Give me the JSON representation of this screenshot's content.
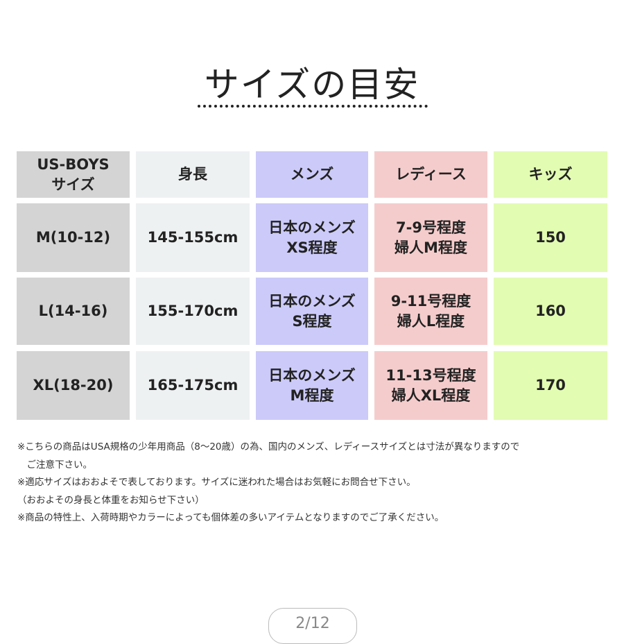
{
  "title": "サイズの目安",
  "table": {
    "headers": [
      "US-BOYS\nサイズ",
      "身長",
      "メンズ",
      "レディース",
      "キッズ"
    ],
    "rows": [
      [
        "M(10-12)",
        "145-155cm",
        "日本のメンズ\nXS程度",
        "7-9号程度\n婦人M程度",
        "150"
      ],
      [
        "L(14-16)",
        "155-170cm",
        "日本のメンズ\nS程度",
        "9-11号程度\n婦人L程度",
        "160"
      ],
      [
        "XL(18-20)",
        "165-175cm",
        "日本のメンズ\nM程度",
        "11-13号程度\n婦人XL程度",
        "170"
      ]
    ],
    "column_colors": [
      "#d4d4d4",
      "#eef1f2",
      "#cbcaf9",
      "#f5cccc",
      "#e2fcb2"
    ]
  },
  "notes": [
    "※こちらの商品はUSA規格の少年用商品（8〜20歳）の為、国内のメンズ、レディースサイズとは寸法が異なりますので",
    "　ご注意下さい。",
    "※適応サイズはおおよそで表しております。サイズに迷われた場合はお気軽にお問合せ下さい。",
    "（おおよその身長と体重をお知らせ下さい）",
    "※商品の特性上、入荷時期やカラーによっても個体差の多いアイテムとなりますのでご了承ください。"
  ],
  "pager": "2/12"
}
